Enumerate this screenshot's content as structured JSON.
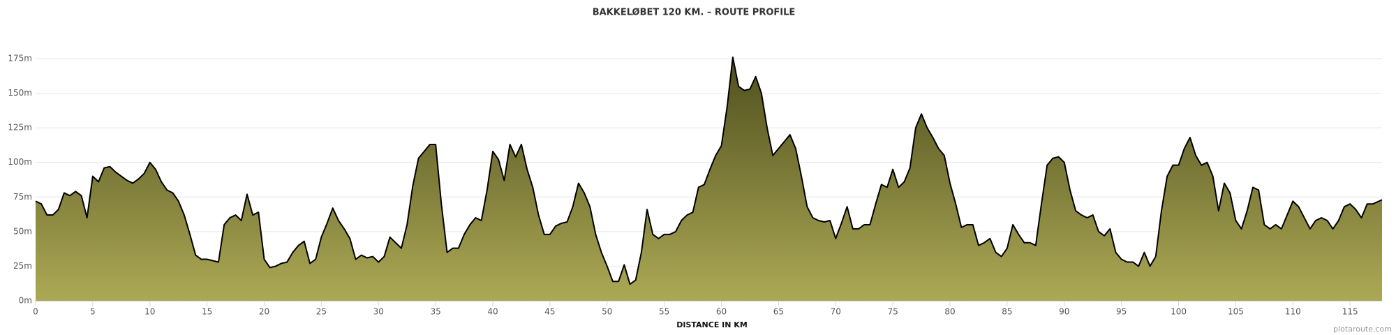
{
  "chart_data": {
    "type": "area",
    "title": "BAKKELØBET 120 KM. – ROUTE PROFILE",
    "x_label": "DISTANCE IN KM",
    "credit": "plotaroute.com",
    "x": [
      0,
      0.5,
      1,
      1.5,
      2,
      2.5,
      3,
      3.5,
      4,
      4.5,
      5,
      5.5,
      6,
      6.5,
      7,
      7.5,
      8,
      8.5,
      9,
      9.5,
      10,
      10.5,
      11,
      11.5,
      12,
      12.5,
      13,
      13.5,
      14,
      14.5,
      15,
      15.5,
      16,
      16.5,
      17,
      17.5,
      18,
      18.5,
      19,
      19.5,
      20,
      20.5,
      21,
      21.5,
      22,
      22.5,
      23,
      23.5,
      24,
      24.5,
      25,
      25.5,
      26,
      26.5,
      27,
      27.5,
      28,
      28.5,
      29,
      29.5,
      30,
      30.5,
      31,
      31.5,
      32,
      32.5,
      33,
      33.5,
      34,
      34.5,
      35,
      35.5,
      36,
      36.5,
      37,
      37.5,
      38,
      38.5,
      39,
      39.5,
      40,
      40.5,
      41,
      41.5,
      42,
      42.5,
      43,
      43.5,
      44,
      44.5,
      45,
      45.5,
      46,
      46.5,
      47,
      47.5,
      48,
      48.5,
      49,
      49.5,
      50,
      50.5,
      51,
      51.5,
      52,
      52.5,
      53,
      53.5,
      54,
      54.5,
      55,
      55.5,
      56,
      56.5,
      57,
      57.5,
      58,
      58.5,
      59,
      59.5,
      60,
      60.5,
      61,
      61.5,
      62,
      62.5,
      63,
      63.5,
      64,
      64.5,
      65,
      65.5,
      66,
      66.5,
      67,
      67.5,
      68,
      68.5,
      69,
      69.5,
      70,
      70.5,
      71,
      71.5,
      72,
      72.5,
      73,
      73.5,
      74,
      74.5,
      75,
      75.5,
      76,
      76.5,
      77,
      77.5,
      78,
      78.5,
      79,
      79.5,
      80,
      80.5,
      81,
      81.5,
      82,
      82.5,
      83,
      83.5,
      84,
      84.5,
      85,
      85.5,
      86,
      86.5,
      87,
      87.5,
      88,
      88.5,
      89,
      89.5,
      90,
      90.5,
      91,
      91.5,
      92,
      92.5,
      93,
      93.5,
      94,
      94.5,
      95,
      95.5,
      96,
      96.5,
      97,
      97.5,
      98,
      98.5,
      99,
      99.5,
      100,
      100.5,
      101,
      101.5,
      102,
      102.5,
      103,
      103.5,
      104,
      104.5,
      105,
      105.5,
      106,
      106.5,
      107,
      107.5,
      108,
      108.5,
      109,
      109.5,
      110,
      110.5,
      111,
      111.5,
      112,
      112.5,
      113,
      113.5,
      114,
      114.5,
      115,
      115.5,
      116,
      116.5,
      117,
      117.8
    ],
    "values": [
      72,
      70,
      62,
      62,
      66,
      78,
      76,
      79,
      76,
      60,
      90,
      86,
      96,
      97,
      93,
      90,
      87,
      85,
      88,
      92,
      100,
      95,
      86,
      80,
      78,
      72,
      62,
      48,
      33,
      30,
      30,
      29,
      28,
      55,
      60,
      62,
      58,
      77,
      62,
      64,
      30,
      24,
      25,
      27,
      28,
      35,
      40,
      43,
      27,
      30,
      46,
      56,
      67,
      58,
      52,
      45,
      30,
      33,
      31,
      32,
      28,
      32,
      46,
      42,
      38,
      55,
      83,
      103,
      108,
      113,
      113,
      70,
      35,
      38,
      38,
      48,
      55,
      60,
      58,
      80,
      108,
      102,
      87,
      113,
      104,
      113,
      95,
      82,
      62,
      48,
      48,
      54,
      56,
      57,
      68,
      85,
      78,
      68,
      48,
      35,
      25,
      14,
      14,
      26,
      12,
      15,
      35,
      66,
      48,
      45,
      48,
      48,
      50,
      58,
      62,
      64,
      82,
      84,
      95,
      105,
      112,
      140,
      176,
      155,
      152,
      153,
      162,
      150,
      125,
      105,
      110,
      115,
      120,
      110,
      90,
      68,
      60,
      58,
      57,
      58,
      45,
      56,
      68,
      52,
      52,
      55,
      55,
      70,
      84,
      82,
      95,
      82,
      86,
      96,
      125,
      135,
      125,
      118,
      110,
      105,
      85,
      70,
      53,
      55,
      55,
      40,
      42,
      45,
      35,
      32,
      38,
      55,
      48,
      42,
      42,
      40,
      70,
      98,
      103,
      104,
      100,
      80,
      65,
      62,
      60,
      62,
      50,
      47,
      52,
      35,
      30,
      28,
      28,
      25,
      35,
      25,
      32,
      65,
      90,
      98,
      98,
      110,
      118,
      105,
      98,
      100,
      90,
      65,
      85,
      78,
      58,
      52,
      65,
      82,
      80,
      55,
      52,
      55,
      52,
      62,
      72,
      68,
      60,
      52,
      58,
      60,
      58,
      52,
      58,
      68,
      70,
      66,
      60,
      70,
      70,
      73
    ],
    "line_color": "#000000",
    "fill_colors": [
      "#4f4f1e",
      "#aca955"
    ],
    "xlim": [
      0,
      117.8
    ],
    "ylim": [
      0,
      175
    ],
    "xticks": [
      0,
      5,
      10,
      15,
      20,
      25,
      30,
      35,
      40,
      45,
      50,
      55,
      60,
      65,
      70,
      75,
      80,
      85,
      90,
      95,
      100,
      105,
      110,
      115
    ],
    "yticks": [
      {
        "value": 0,
        "label": "0m"
      },
      {
        "value": 25,
        "label": "25m"
      },
      {
        "value": 50,
        "label": "50m"
      },
      {
        "value": 75,
        "label": "75m"
      },
      {
        "value": 100,
        "label": "100m"
      },
      {
        "value": 125,
        "label": "125m"
      },
      {
        "value": 150,
        "label": "150m"
      },
      {
        "value": 175,
        "label": "175m"
      }
    ],
    "grid": true
  }
}
